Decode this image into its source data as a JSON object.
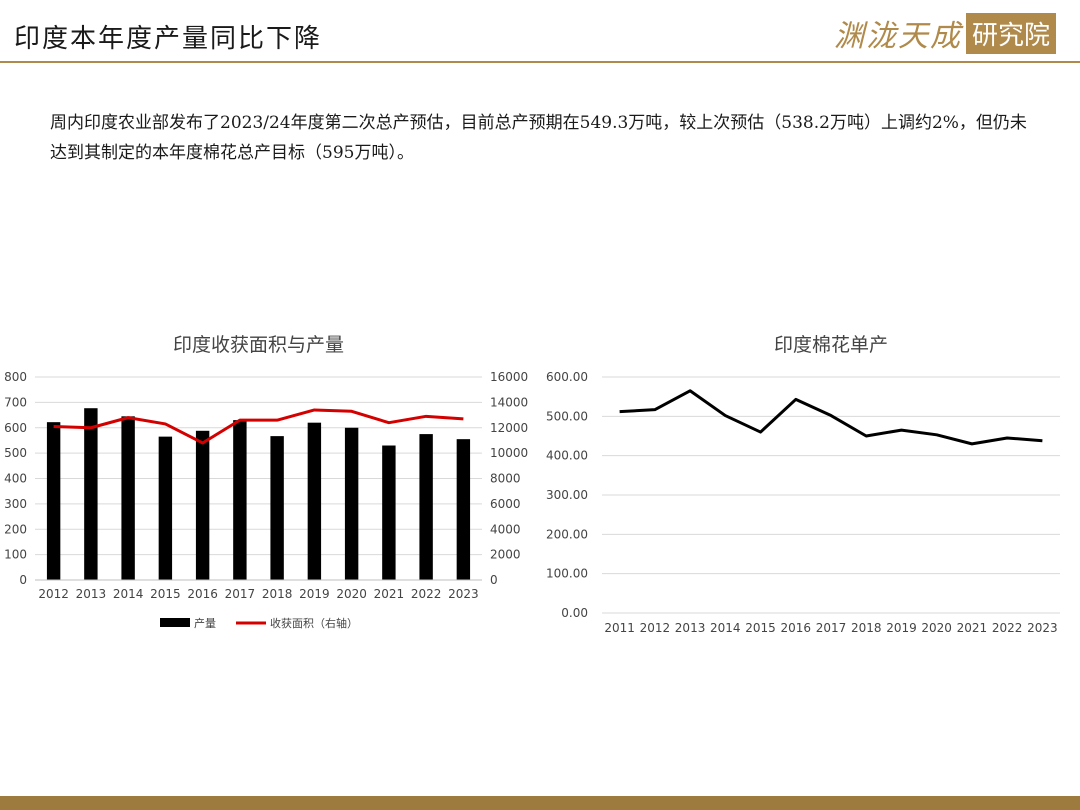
{
  "header": {
    "title": "印度本年度产量同比下降",
    "logo_text": "渊泷天成",
    "logo_box": "研究院"
  },
  "paragraph": "周内印度农业部发布了2023/24年度第二次总产预估，目前总产预期在549.3万吨，较上次预估（538.2万吨）上调约2%，但仍未达到其制定的本年度棉花总产目标（595万吨）。",
  "colors": {
    "accent": "#b08a4a",
    "bar": "#000000",
    "line_red": "#d40000",
    "line_black": "#000000"
  },
  "chart_data": [
    {
      "type": "bar",
      "title": "印度收获面积与产量",
      "categories": [
        "2012",
        "2013",
        "2014",
        "2015",
        "2016",
        "2017",
        "2018",
        "2019",
        "2020",
        "2021",
        "2022",
        "2023"
      ],
      "series": [
        {
          "name": "产量",
          "type": "bar",
          "axis": "left",
          "values": [
            622,
            677,
            645,
            565,
            588,
            630,
            567,
            620,
            600,
            530,
            575,
            555
          ]
        },
        {
          "name": "收获面积（右轴）",
          "type": "line",
          "axis": "right",
          "values": [
            12100,
            12000,
            12800,
            12300,
            10800,
            12600,
            12600,
            13400,
            13300,
            12400,
            12900,
            12700
          ]
        }
      ],
      "ylim_left": [
        0,
        800
      ],
      "yticks_left": [
        "0",
        "100",
        "200",
        "300",
        "400",
        "500",
        "600",
        "700",
        "800"
      ],
      "ylim_right": [
        0,
        16000
      ],
      "yticks_right": [
        "0",
        "2000",
        "4000",
        "6000",
        "8000",
        "10000",
        "12000",
        "14000",
        "16000"
      ],
      "legend": "bottom",
      "grid": true
    },
    {
      "type": "line",
      "title": "印度棉花单产",
      "categories": [
        "2011",
        "2012",
        "2013",
        "2014",
        "2015",
        "2016",
        "2017",
        "2018",
        "2019",
        "2020",
        "2021",
        "2022",
        "2023"
      ],
      "series": [
        {
          "values": [
            512,
            517,
            565,
            502,
            460,
            543,
            502,
            450,
            465,
            453,
            430,
            445,
            438
          ]
        }
      ],
      "ylim": [
        0,
        600
      ],
      "yticks": [
        "0.00",
        "100.00",
        "200.00",
        "300.00",
        "400.00",
        "500.00",
        "600.00"
      ],
      "grid": true
    }
  ]
}
